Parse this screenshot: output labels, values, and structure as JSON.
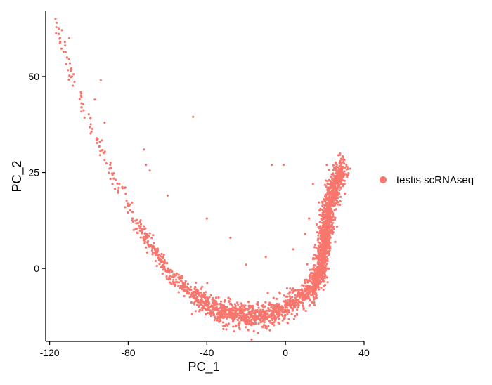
{
  "chart_data": {
    "type": "scatter",
    "title": "",
    "xlabel": "PC_1",
    "ylabel": "PC_2",
    "xlim": [
      -122,
      40
    ],
    "ylim": [
      -19,
      67
    ],
    "xticks": [
      -120,
      -80,
      -40,
      0,
      40
    ],
    "yticks": [
      0,
      25,
      50
    ],
    "xtick_labels": [
      "-120",
      "-80",
      "-40",
      "0",
      "40"
    ],
    "ytick_labels": [
      "0",
      "25",
      "50"
    ],
    "grid": false,
    "legend_position": "right",
    "series": [
      {
        "name": "testis scRNAseq",
        "color": "#F8766D",
        "trajectory": [
          [
            -117,
            64
          ],
          [
            -112,
            56
          ],
          [
            -106,
            46
          ],
          [
            -100,
            39
          ],
          [
            -94,
            31
          ],
          [
            -88,
            24
          ],
          [
            -82,
            18.5
          ],
          [
            -76,
            12.5
          ],
          [
            -70,
            7
          ],
          [
            -64,
            2.5
          ],
          [
            -58,
            -1.5
          ],
          [
            -52,
            -4.5
          ],
          [
            -46,
            -7
          ],
          [
            -40,
            -9.3
          ],
          [
            -34,
            -10.8
          ],
          [
            -28,
            -11.7
          ],
          [
            -22,
            -12.3
          ],
          [
            -16,
            -12.5
          ],
          [
            -10,
            -12.2
          ],
          [
            -4,
            -11.3
          ],
          [
            2,
            -9.8
          ],
          [
            8,
            -7.8
          ],
          [
            13,
            -5.5
          ],
          [
            16,
            -3
          ],
          [
            18,
            0
          ],
          [
            19,
            4
          ],
          [
            20,
            8
          ],
          [
            21,
            12
          ],
          [
            22,
            16
          ],
          [
            24,
            20
          ],
          [
            26,
            23
          ],
          [
            29,
            26
          ]
        ],
        "outliers": [
          [
            -117,
            65
          ],
          [
            -116.5,
            64
          ],
          [
            -110,
            60
          ],
          [
            -104,
            45
          ],
          [
            -97,
            44
          ],
          [
            -94,
            49
          ],
          [
            -92,
            38
          ],
          [
            -88,
            22
          ],
          [
            -85,
            20
          ],
          [
            -72,
            31
          ],
          [
            -71,
            27
          ],
          [
            -69,
            25.5
          ],
          [
            -60,
            19
          ],
          [
            -47,
            39.5
          ],
          [
            -40,
            13
          ],
          [
            -28,
            8
          ],
          [
            -20,
            1
          ],
          [
            -7,
            27
          ],
          [
            -1,
            27
          ],
          [
            -10,
            3
          ],
          [
            4,
            5
          ],
          [
            10,
            9
          ],
          [
            12,
            13
          ],
          [
            21,
            27
          ],
          [
            27,
            29.5
          ],
          [
            31,
            27
          ],
          [
            33,
            26
          ],
          [
            14,
            22
          ],
          [
            25,
            18
          ],
          [
            28,
            21
          ]
        ]
      }
    ]
  }
}
